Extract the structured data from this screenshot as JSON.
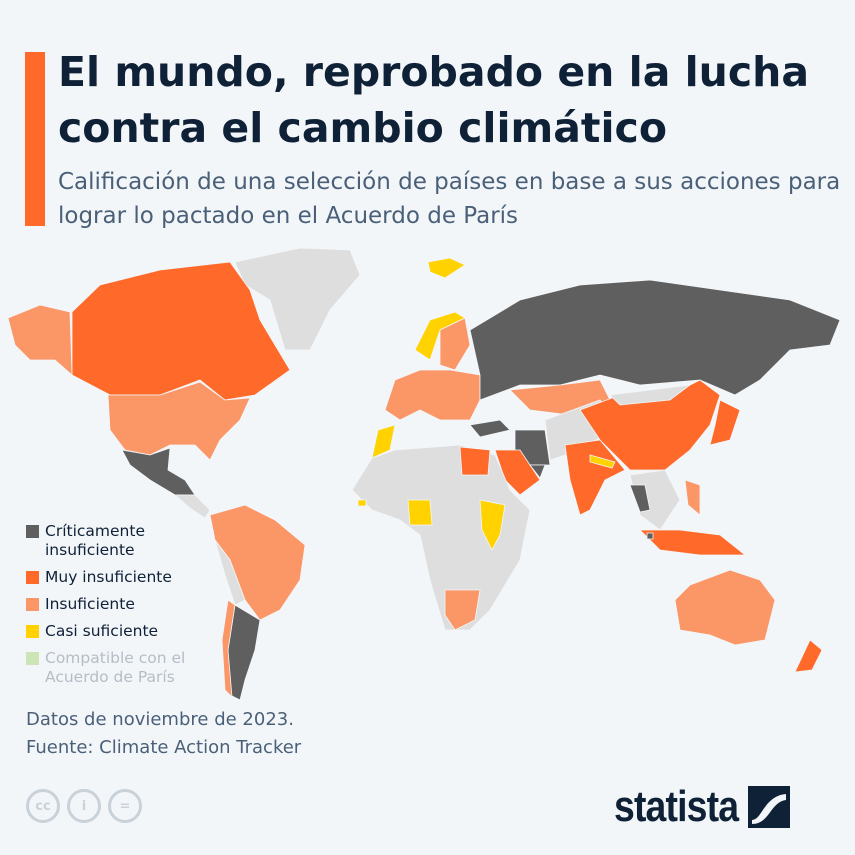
{
  "header": {
    "title": "El mundo, reprobado en la lucha contra el cambio climático",
    "subtitle": "Calificación de una selección de países en base a sus acciones para lograr lo pactado en el Acuerdo de París"
  },
  "legend": [
    {
      "label": "Críticamente insuficiente",
      "color": "#5f5f5f"
    },
    {
      "label": "Muy insuficiente",
      "color": "#ff6a2a"
    },
    {
      "label": "Insuficiente",
      "color": "#fb9667"
    },
    {
      "label": "Casi suficiente",
      "color": "#ffd200"
    },
    {
      "label": "Compatible con el Acuerdo de París",
      "color": "#cbe6b4"
    }
  ],
  "no_data_color": "#dedede",
  "footer": {
    "date_note": "Datos de noviembre de 2023.",
    "source": "Fuente: Climate Action Tracker",
    "license_icons": [
      "cc-icon",
      "attribution-icon",
      "no-derivatives-icon"
    ],
    "brand": "statista"
  }
}
